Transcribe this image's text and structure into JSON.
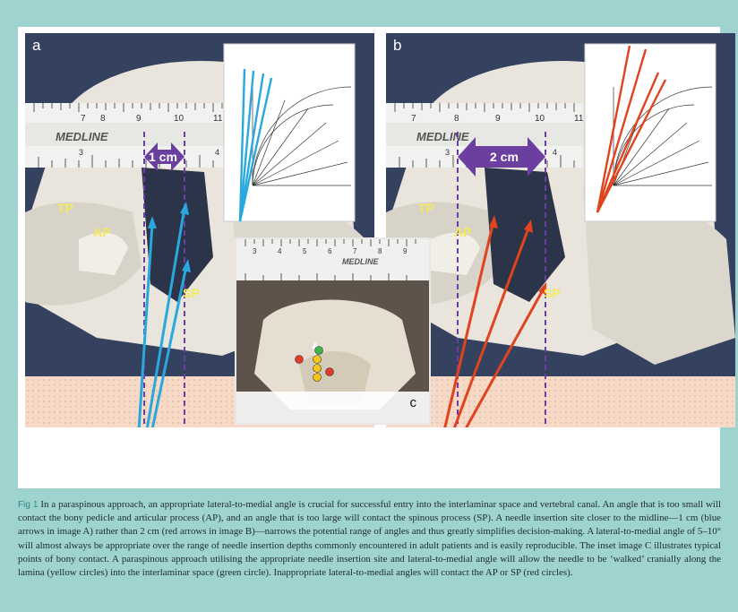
{
  "figure": {
    "panel_a": {
      "letter": "a",
      "distance_label": "1 cm",
      "labels": {
        "tp": "TP",
        "ap": "AP",
        "sp": "SP"
      },
      "ruler_brand": "MEDLINE",
      "ruler_cm_ticks": [
        "7",
        "8",
        "9",
        "10",
        "11"
      ],
      "ruler_inch_ticks": [
        "3",
        "4"
      ],
      "arrow_color": "#29a8de"
    },
    "panel_b": {
      "letter": "b",
      "distance_label": "2 cm",
      "labels": {
        "tp": "TP",
        "ap": "AP",
        "sp": "SP"
      },
      "ruler_brand": "MEDLINE",
      "ruler_cm_ticks": [
        "7",
        "8",
        "9",
        "10",
        "11"
      ],
      "ruler_inch_ticks": [
        "3",
        "4"
      ],
      "arrow_color": "#e0431e"
    },
    "inset_c": {
      "letter": "c",
      "ruler_brand": "MEDLINE",
      "ruler_cm_ticks": [
        "3",
        "4",
        "5",
        "6",
        "7",
        "8",
        "9"
      ],
      "circle_colors": {
        "red": "#e23b2b",
        "yellow": "#f5c518",
        "green": "#3cb54a"
      }
    },
    "colors": {
      "frame": "#9fd3cf",
      "dashed_lines": "#6b3fa0",
      "distance_arrow": "#6b3fa0",
      "label_text": "#f4e95a",
      "skin_band": "#f6d9c6"
    }
  },
  "caption": {
    "fig_number": "Fig 1",
    "text": "In a paraspinous approach, an appropriate lateral-to-medial angle is crucial for successful entry into the interlaminar space and vertebral canal. An angle that is too small will contact the bony pedicle and articular process (AP), and an angle that is too large will contact the spinous process (SP). A needle insertion site closer to the midline—1 cm (blue arrows in image A) rather than 2 cm (red arrows in image B)—narrows the potential range of angles and thus greatly simplifies decision-making. A lateral-to-medial angle of 5–10° will almost always be appropriate over the range of needle insertion depths commonly encountered in adult patients and is easily reproducible. The inset image C illustrates typical points of bony contact. A paraspinous approach utilising the appropriate needle insertion site and lateral-to-medial angle will allow the needle to be ‘walked’ cranially along the lamina (yellow circles) into the interlaminar space (green circle). Inappropriate lateral-to-medial angles will contact the AP or SP (red circles)."
  }
}
